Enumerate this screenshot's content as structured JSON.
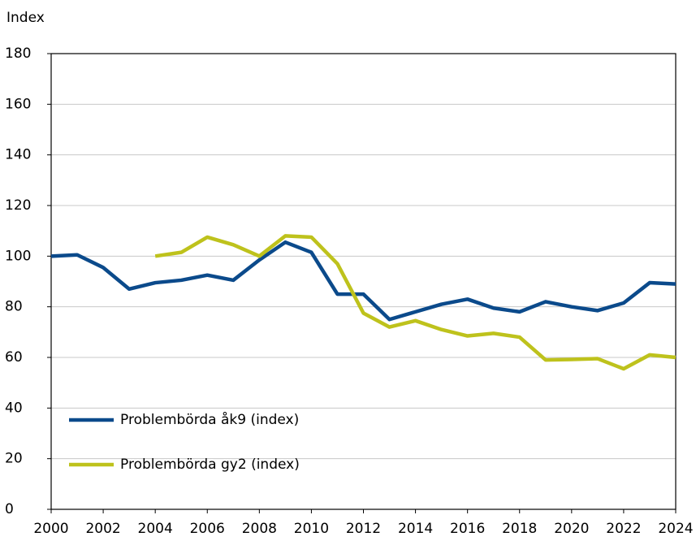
{
  "chart_data": {
    "type": "line",
    "y_label": "Index",
    "x": [
      2000,
      2001,
      2002,
      2003,
      2004,
      2005,
      2006,
      2007,
      2008,
      2009,
      2010,
      2011,
      2012,
      2013,
      2014,
      2015,
      2016,
      2017,
      2018,
      2019,
      2020,
      2021,
      2022,
      2023,
      2024
    ],
    "series": [
      {
        "name": "Problembörda åk9 (index)",
        "color": "#0b4a8b",
        "values": [
          100,
          100.5,
          95.5,
          87,
          89.5,
          90.5,
          92.5,
          90.5,
          98.5,
          105.5,
          101.5,
          85,
          85,
          75,
          78,
          81,
          83,
          79.5,
          78,
          82,
          80,
          78.5,
          81.5,
          89.5,
          89
        ]
      },
      {
        "name": "Problembörda gy2 (index)",
        "color": "#bec21c",
        "values": [
          null,
          null,
          null,
          null,
          100,
          101.5,
          107.5,
          104.5,
          100,
          108,
          107.5,
          97,
          77.5,
          72,
          74.5,
          71,
          68.5,
          69.5,
          68,
          59,
          59.2,
          59.5,
          55.5,
          61,
          60
        ]
      }
    ],
    "xlim": [
      2000,
      2024
    ],
    "xticks": [
      2000,
      2002,
      2004,
      2006,
      2008,
      2010,
      2012,
      2014,
      2016,
      2018,
      2020,
      2022,
      2024
    ],
    "ylim": [
      0,
      180
    ],
    "yticks": [
      0,
      20,
      40,
      60,
      80,
      100,
      120,
      140,
      160,
      180
    ],
    "grid": true,
    "legend": "lower left"
  }
}
